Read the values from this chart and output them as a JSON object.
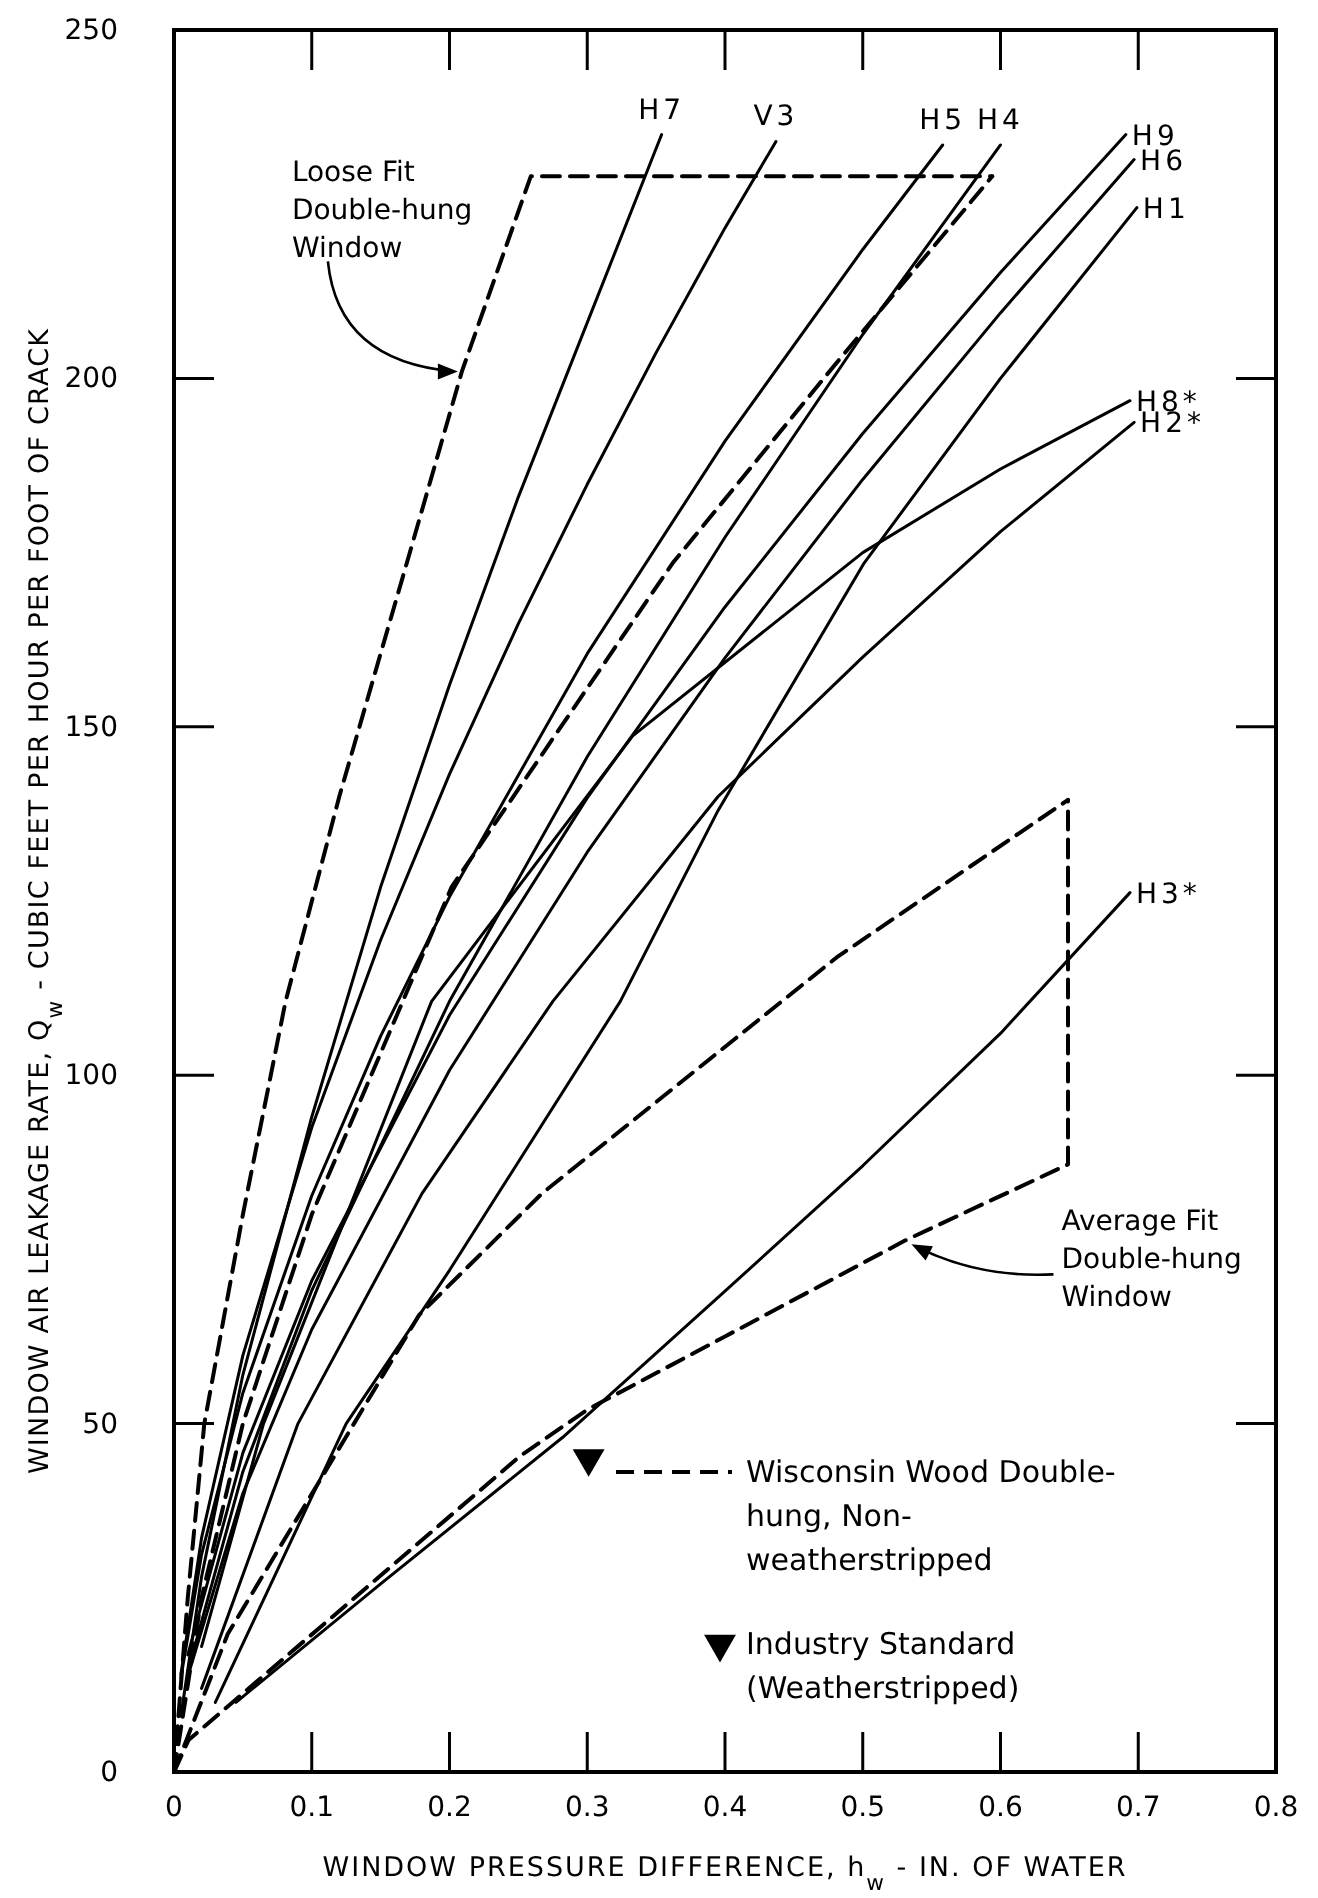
{
  "chart_data": {
    "type": "line",
    "xlabel": "WINDOW PRESSURE DIFFERENCE, h$_{w}$ - IN. OF WATER",
    "ylabel": "WINDOW AIR LEAKAGE RATE, Q$_{w}$ - CUBIC FEET PER HOUR PER FOOT OF CRACK",
    "xlim": [
      0,
      0.8
    ],
    "ylim": [
      0,
      250
    ],
    "xticks": [
      0,
      0.1,
      0.2,
      0.3,
      0.4,
      0.5,
      0.6,
      0.7,
      0.8
    ],
    "yticks": [
      0,
      50,
      100,
      150,
      200,
      250
    ],
    "legend": "bottom right",
    "series": [
      {
        "name": "Wisconsin Wood Double-hung, Non-weatherstripped",
        "color": "#000000",
        "line_style": "dashed",
        "marker": "none",
        "x": [
          0,
          0.01,
          0.022,
          0.05,
          0.081,
          0.12,
          0.169,
          0.209,
          0.259,
          0.594
        ],
        "values": [
          0,
          25,
          50,
          80,
          110.6,
          140,
          173.5,
          201,
          229,
          229
        ]
      },
      {
        "color": "#000000",
        "line_style": "dashed",
        "marker": "none",
        "x": [
          0,
          0.02,
          0.05,
          0.1,
          0.2015,
          0.362,
          0.48,
          0.594
        ],
        "values": [
          0,
          25,
          50,
          80,
          127,
          173.5,
          202,
          229
        ]
      },
      {
        "color": "#000000",
        "line_style": "dashed",
        "marker": "none",
        "x": [
          0,
          0.039,
          0.178,
          0.267,
          0.481,
          0.649
        ],
        "values": [
          0,
          19.8,
          65.6,
          83,
          116.9,
          139.5
        ]
      },
      {
        "color": "#000000",
        "line_style": "dashed",
        "marker": "none",
        "x": [
          0,
          0.0106,
          0.251,
          0.3,
          0.4,
          0.531,
          0.649,
          0.649
        ],
        "values": [
          0,
          4.6,
          45.3,
          52,
          62.5,
          76.3,
          87.2,
          139.5
        ]
      },
      {
        "name": "H7",
        "color": "#000000",
        "line_style": "solid",
        "marker": "none",
        "x": [
          0.005,
          0.02,
          0.05,
          0.1,
          0.15,
          0.2,
          0.25,
          0.3,
          0.354
        ],
        "values": [
          8,
          28,
          57,
          94,
          127,
          156,
          183,
          208,
          235
        ]
      },
      {
        "name": "V3",
        "color": "#000000",
        "line_style": "solid",
        "marker": "none",
        "x": [
          0.005,
          0.02,
          0.05,
          0.1,
          0.15,
          0.2,
          0.25,
          0.3,
          0.35,
          0.4,
          0.437
        ],
        "values": [
          14,
          33.6,
          59.8,
          92.5,
          119.4,
          143.2,
          164.8,
          184.8,
          203.7,
          221.6,
          234
        ]
      },
      {
        "name": "H5",
        "color": "#000000",
        "line_style": "solid",
        "marker": "none",
        "x": [
          0.005,
          0.02,
          0.05,
          0.1,
          0.15,
          0.2,
          0.3,
          0.4,
          0.5,
          0.558
        ],
        "values": [
          13.5,
          31.2,
          54.4,
          82.7,
          105.6,
          125.6,
          160.5,
          191,
          218.5,
          233.5
        ]
      },
      {
        "name": "H4",
        "color": "#000000",
        "line_style": "solid",
        "marker": "none",
        "x": [
          0.01,
          0.05,
          0.1,
          0.2,
          0.3,
          0.4,
          0.5,
          0.6
        ],
        "values": [
          14.4,
          43.1,
          69.1,
          110.6,
          145.7,
          177.2,
          206.3,
          233.5
        ]
      },
      {
        "name": "H9",
        "color": "#000000",
        "line_style": "solid",
        "marker": "none",
        "x": [
          0.01,
          0.05,
          0.1,
          0.2,
          0.3,
          0.4,
          0.5,
          0.6,
          0.691
        ],
        "values": [
          16.8,
          45.8,
          70.5,
          108.6,
          139.8,
          167.2,
          192.1,
          215.2,
          235
        ]
      },
      {
        "name": "H6",
        "color": "#000000",
        "line_style": "solid",
        "marker": "none",
        "x": [
          0.01,
          0.05,
          0.1,
          0.2,
          0.3,
          0.4,
          0.5,
          0.6,
          0.697
        ],
        "values": [
          13.7,
          40,
          63.5,
          100.7,
          132,
          159.9,
          185.5,
          209.4,
          231.4
        ]
      },
      {
        "name": "H1",
        "color": "#000000",
        "line_style": "solid",
        "marker": "none",
        "x": [
          0.03,
          0.125,
          0.2,
          0.324,
          0.395,
          0.501,
          0.6,
          0.699
        ],
        "values": [
          10,
          50,
          72,
          110.6,
          138,
          173.5,
          200,
          224.5
        ]
      },
      {
        "name": "H8*",
        "color": "#000000",
        "line_style": "solid",
        "marker": "none",
        "x": [
          0.02,
          0.065,
          0.187,
          0.333,
          0.5,
          0.6,
          0.694
        ],
        "values": [
          18,
          50,
          110.6,
          148.7,
          175,
          187,
          196.8
        ]
      },
      {
        "name": "H2*",
        "color": "#000000",
        "line_style": "solid",
        "marker": "none",
        "x": [
          0.02,
          0.09,
          0.18,
          0.275,
          0.395,
          0.5,
          0.6,
          0.697
        ],
        "values": [
          12,
          50,
          83,
          110.6,
          140,
          160,
          178,
          193.7
        ]
      },
      {
        "name": "H3*",
        "color": "#000000",
        "line_style": "solid",
        "marker": "none",
        "x": [
          0.045,
          0.15,
          0.282,
          0.4,
          0.5,
          0.6,
          0.694
        ],
        "values": [
          10,
          27,
          48,
          69,
          87,
          106,
          126.2
        ]
      },
      {
        "name": "Industry Standard (Weatherstripped)",
        "type": "scatter",
        "color": "#000000",
        "marker": "triangle",
        "x": [
          0.301
        ],
        "values": [
          45
        ]
      }
    ],
    "annotations": [
      {
        "text": "Loose Fit Double-hung Window",
        "x": 0.209,
        "y": 201
      },
      {
        "text": "Average Fit Double-hung Window",
        "x": 0.531,
        "y": 76.3
      }
    ]
  }
}
